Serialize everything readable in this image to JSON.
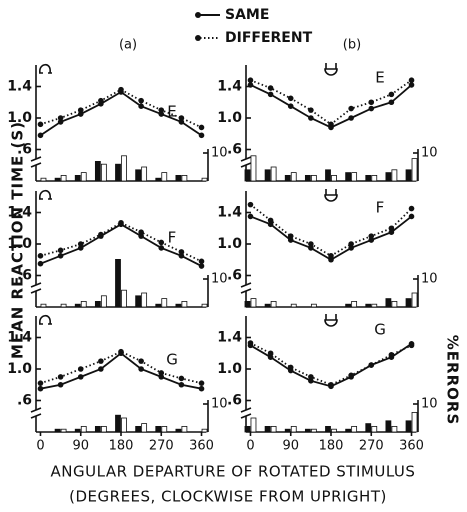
{
  "figure": {
    "legend": [
      {
        "name": "SAME",
        "style": "solid"
      },
      {
        "name": "DIFFERENT",
        "style": "dotted"
      }
    ],
    "column_labels": [
      "(a)",
      "(b)"
    ],
    "ylabel": "MEAN REACTION TIME (S)",
    "y2label": "%ERRORS",
    "xlabel": [
      "ANGULAR DEPARTURE OF ROTATED STIMULUS",
      "(DEGREES, CLOCKWISE FROM UPRIGHT)"
    ]
  },
  "chart_data": [
    {
      "type": "line",
      "label": "E",
      "x": [
        0,
        45,
        90,
        135,
        180,
        225,
        270,
        315,
        360
      ],
      "xlim": [
        -10,
        370
      ],
      "ylim": [
        0.2,
        1.8
      ],
      "yticks": [
        {
          "value": 0.6,
          "label": ".6"
        },
        {
          "value": 1.0,
          "label": "1.0"
        },
        1.4
      ],
      "y2lim": [
        0,
        45
      ],
      "y2ticks": [
        10
      ],
      "series": [
        {
          "style": "solid",
          "color": "#111",
          "values": [
            0.78,
            0.95,
            1.05,
            1.18,
            1.33,
            1.15,
            1.05,
            0.95,
            0.78
          ]
        },
        {
          "style": "dotted",
          "color": "#111",
          "values": [
            0.92,
            1.0,
            1.1,
            1.22,
            1.36,
            1.22,
            1.1,
            1.0,
            0.88
          ]
        }
      ],
      "errors": [
        {
          "fill": "#111",
          "values": [
            0,
            1,
            2,
            7,
            6,
            4,
            1,
            2,
            0
          ]
        },
        {
          "fill": "#fff",
          "values": [
            1,
            2,
            3,
            6,
            9,
            5,
            3,
            2,
            1
          ]
        }
      ]
    },
    {
      "type": "line",
      "label": "E",
      "x": [
        0,
        45,
        90,
        135,
        180,
        225,
        270,
        315,
        360
      ],
      "xlim": [
        -10,
        370
      ],
      "ylim": [
        0.2,
        1.8
      ],
      "yticks": [
        {
          "value": 0.6,
          "label": ".6"
        },
        {
          "value": 1.0,
          "label": "1.0"
        },
        1.4
      ],
      "y2lim": [
        0,
        45
      ],
      "y2ticks": [
        10
      ],
      "series": [
        {
          "style": "solid",
          "color": "#111",
          "values": [
            1.42,
            1.3,
            1.15,
            1.0,
            0.88,
            1.0,
            1.12,
            1.2,
            1.42
          ]
        },
        {
          "style": "dotted",
          "color": "#111",
          "values": [
            1.48,
            1.38,
            1.25,
            1.1,
            0.92,
            1.12,
            1.2,
            1.3,
            1.48
          ]
        }
      ],
      "errors": [
        {
          "fill": "#111",
          "values": [
            4,
            4,
            2,
            2,
            4,
            3,
            2,
            3,
            4
          ]
        },
        {
          "fill": "#fff",
          "values": [
            9,
            5,
            3,
            2,
            2,
            3,
            2,
            4,
            8
          ]
        }
      ]
    },
    {
      "type": "line",
      "label": "F",
      "x": [
        0,
        45,
        90,
        135,
        180,
        225,
        270,
        315,
        360
      ],
      "xlim": [
        -10,
        370
      ],
      "ylim": [
        0.2,
        1.8
      ],
      "yticks": [
        {
          "value": 0.6,
          "label": ".6"
        },
        {
          "value": 1.0,
          "label": "1.0"
        },
        1.4
      ],
      "y2lim": [
        0,
        45
      ],
      "y2ticks": [
        10
      ],
      "series": [
        {
          "style": "solid",
          "color": "#111",
          "values": [
            0.75,
            0.85,
            0.95,
            1.1,
            1.25,
            1.1,
            0.95,
            0.85,
            0.72
          ]
        },
        {
          "style": "dotted",
          "color": "#111",
          "values": [
            0.85,
            0.92,
            1.0,
            1.12,
            1.27,
            1.15,
            1.02,
            0.9,
            0.78
          ]
        }
      ],
      "errors": [
        {
          "fill": "#111",
          "values": [
            0,
            0,
            1,
            2,
            17,
            4,
            1,
            1,
            0
          ]
        },
        {
          "fill": "#fff",
          "values": [
            1,
            1,
            2,
            4,
            6,
            5,
            3,
            2,
            1
          ]
        }
      ]
    },
    {
      "type": "line",
      "label": "F",
      "x": [
        0,
        45,
        90,
        135,
        180,
        225,
        270,
        315,
        360
      ],
      "xlim": [
        -10,
        370
      ],
      "ylim": [
        0.2,
        1.8
      ],
      "yticks": [
        {
          "value": 0.6,
          "label": ".6"
        },
        {
          "value": 1.0,
          "label": "1.0"
        },
        1.4
      ],
      "y2lim": [
        0,
        45
      ],
      "y2ticks": [
        10
      ],
      "series": [
        {
          "style": "solid",
          "color": "#111",
          "values": [
            1.35,
            1.25,
            1.05,
            0.95,
            0.8,
            0.95,
            1.05,
            1.15,
            1.35
          ]
        },
        {
          "style": "dotted",
          "color": "#111",
          "values": [
            1.5,
            1.3,
            1.1,
            1.0,
            0.85,
            1.0,
            1.1,
            1.2,
            1.45
          ]
        }
      ],
      "errors": [
        {
          "fill": "#111",
          "values": [
            2,
            1,
            0,
            0,
            0,
            1,
            1,
            3,
            3
          ]
        },
        {
          "fill": "#fff",
          "values": [
            3,
            2,
            1,
            1,
            0,
            2,
            1,
            2,
            5
          ]
        }
      ]
    },
    {
      "type": "line",
      "label": "G",
      "x": [
        0,
        45,
        90,
        135,
        180,
        225,
        270,
        315,
        360
      ],
      "xlim": [
        -10,
        370
      ],
      "ylim": [
        0.2,
        1.8
      ],
      "xticks": [
        0,
        90,
        180,
        270,
        360
      ],
      "yticks": [
        {
          "value": 0.6,
          "label": ".6"
        },
        {
          "value": 1.0,
          "label": "1.0"
        },
        1.4
      ],
      "y2lim": [
        0,
        45
      ],
      "y2ticks": [
        10
      ],
      "series": [
        {
          "style": "solid",
          "color": "#111",
          "values": [
            0.75,
            0.8,
            0.9,
            1.0,
            1.2,
            1.0,
            0.9,
            0.8,
            0.75
          ]
        },
        {
          "style": "dotted",
          "color": "#111",
          "values": [
            0.82,
            0.9,
            1.0,
            1.1,
            1.22,
            1.1,
            0.95,
            0.88,
            0.82
          ]
        }
      ],
      "errors": [
        {
          "fill": "#111",
          "values": [
            0,
            1,
            1,
            2,
            6,
            2,
            2,
            1,
            0
          ]
        },
        {
          "fill": "#fff",
          "values": [
            0,
            1,
            2,
            2,
            5,
            3,
            2,
            2,
            1
          ]
        }
      ]
    },
    {
      "type": "line",
      "label": "G",
      "x": [
        0,
        45,
        90,
        135,
        180,
        225,
        270,
        315,
        360
      ],
      "xlim": [
        -10,
        370
      ],
      "ylim": [
        0.2,
        1.8
      ],
      "xticks": [
        0,
        90,
        180,
        270,
        360
      ],
      "yticks": [
        {
          "value": 0.6,
          "label": ".6"
        },
        {
          "value": 1.0,
          "label": "1.0"
        },
        1.4
      ],
      "y2lim": [
        0,
        45
      ],
      "y2ticks": [
        10
      ],
      "series": [
        {
          "style": "solid",
          "color": "#111",
          "values": [
            1.3,
            1.15,
            0.98,
            0.85,
            0.78,
            0.9,
            1.05,
            1.15,
            1.32
          ]
        },
        {
          "style": "dotted",
          "color": "#111",
          "values": [
            1.33,
            1.2,
            1.02,
            0.9,
            0.8,
            0.92,
            1.05,
            1.18,
            1.3
          ]
        }
      ],
      "errors": [
        {
          "fill": "#111",
          "values": [
            2,
            2,
            1,
            1,
            2,
            1,
            3,
            4,
            4
          ]
        },
        {
          "fill": "#fff",
          "values": [
            5,
            2,
            2,
            1,
            1,
            2,
            2,
            2,
            7
          ]
        }
      ]
    }
  ]
}
